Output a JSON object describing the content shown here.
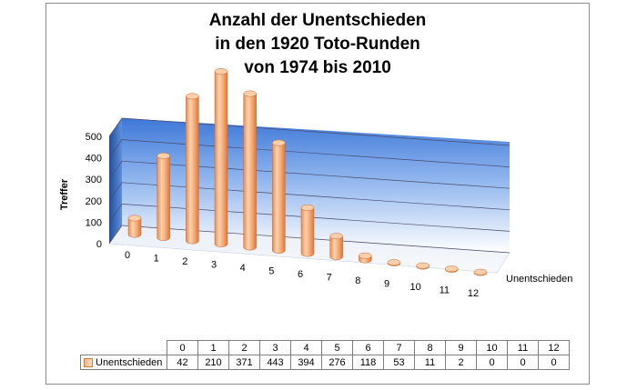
{
  "chart_data": {
    "type": "bar",
    "title_lines": [
      "Anzahl der Unentschieden",
      "in den 1920 Toto-Runden",
      "von 1974 bis 2010"
    ],
    "ylabel": "Treffer",
    "depth_axis_label": "Unentschieden",
    "series_name": "Unentschieden",
    "categories": [
      "0",
      "1",
      "2",
      "3",
      "4",
      "5",
      "6",
      "7",
      "8",
      "9",
      "10",
      "11",
      "12"
    ],
    "values": [
      42,
      210,
      371,
      443,
      394,
      276,
      118,
      53,
      11,
      2,
      0,
      0,
      0
    ],
    "y_ticks": [
      "0",
      "100",
      "200",
      "300",
      "400",
      "500"
    ],
    "ylim": [
      0,
      500
    ],
    "grid": true,
    "bar_color": "#f4a46b",
    "wall_color_top": "#3d78d8",
    "wall_color_bottom": "#ffffff"
  }
}
